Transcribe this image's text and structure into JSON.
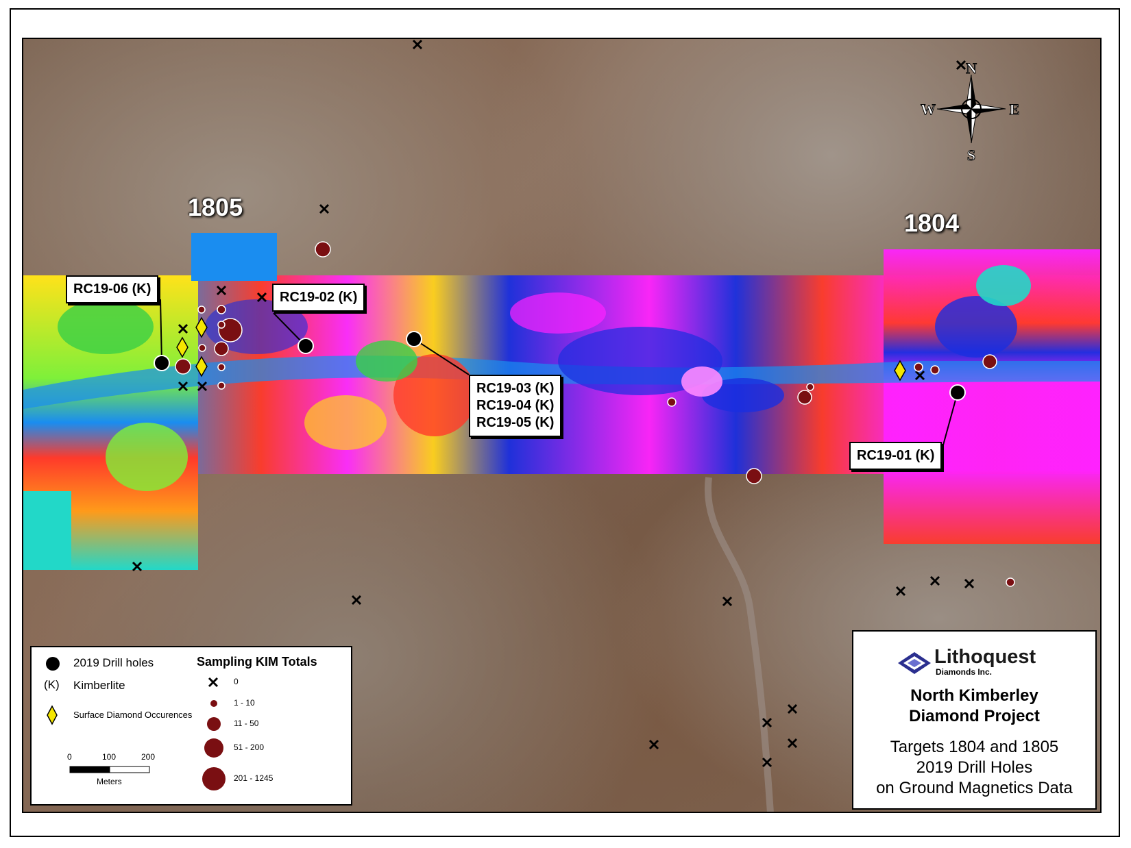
{
  "targets": [
    {
      "id": "1805",
      "label": "1805"
    },
    {
      "id": "1804",
      "label": "1804"
    }
  ],
  "callouts": {
    "rc19_06": [
      "RC19-06 (K)"
    ],
    "rc19_02": [
      "RC19-02 (K)"
    ],
    "rc19_03_05": [
      "RC19-03 (K)",
      "RC19-04 (K)",
      "RC19-05 (K)"
    ],
    "rc19_01": [
      "RC19-01 (K)"
    ]
  },
  "north_arrow": {
    "n": "N",
    "s": "S",
    "e": "E",
    "w": "W"
  },
  "legend": {
    "symbols": {
      "drill_holes": "2019 Drill holes",
      "kimberlite_symbol": "(K)",
      "kimberlite": "Kimberlite",
      "surface_diamond": "Surface Diamond Occurences"
    },
    "scale": {
      "ticks": [
        "0",
        "100",
        "200"
      ],
      "unit": "Meters"
    },
    "kim_title": "Sampling KIM Totals",
    "kim_classes": [
      "0",
      "1 - 10",
      "11 - 50",
      "51 - 200",
      "201 - 1245"
    ]
  },
  "title_block": {
    "company": "Lithoquest",
    "company_sub": "Diamonds Inc.",
    "project_line1": "North Kimberley",
    "project_line2": "Diamond Project",
    "desc_line1": "Targets 1804 and 1805",
    "desc_line2": "2019 Drill Holes",
    "desc_line3": "on Ground Magnetics Data"
  },
  "colors": {
    "drill_hole": "#000000",
    "kim_sample": "#7a0f12",
    "diamond": "#f5e600",
    "mag_low": "#1a2ee0",
    "mag_high": "#ff22ff"
  }
}
